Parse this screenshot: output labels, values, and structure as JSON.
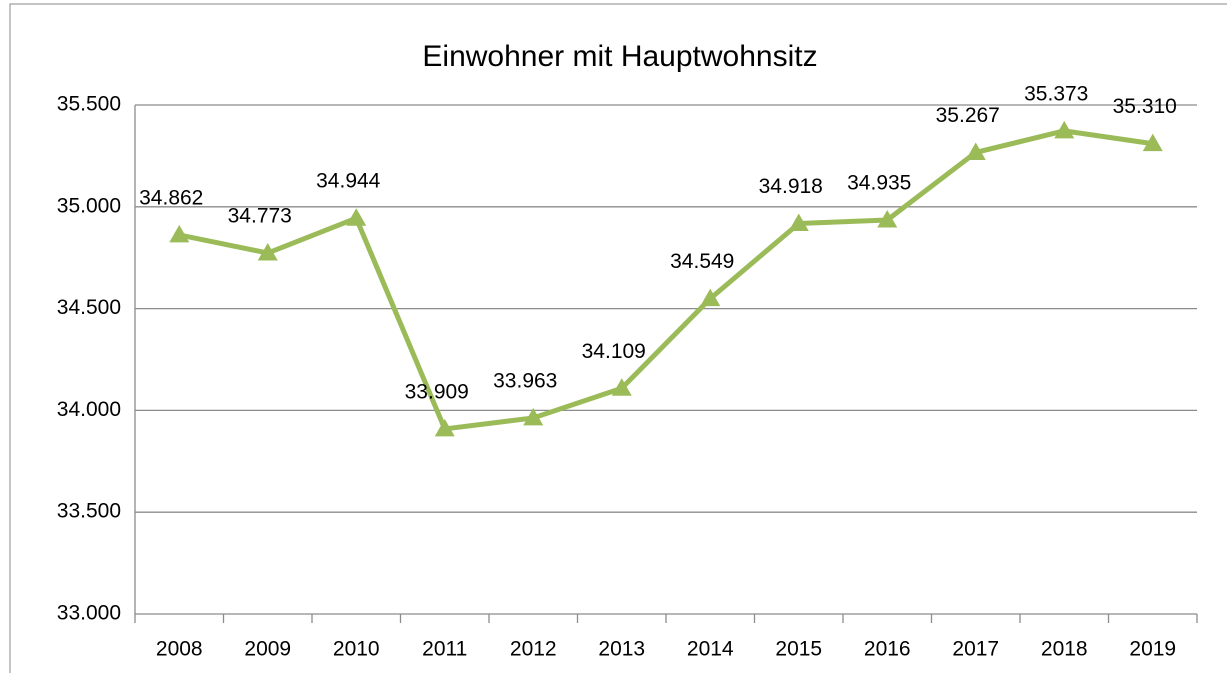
{
  "chart_data": {
    "type": "line",
    "title": "Einwohner mit Hauptwohnsitz",
    "categories": [
      "2008",
      "2009",
      "2010",
      "2011",
      "2012",
      "2013",
      "2014",
      "2015",
      "2016",
      "2017",
      "2018",
      "2019"
    ],
    "series": [
      {
        "name": "Einwohner mit Hauptwohnsitz",
        "color": "#9bbb59",
        "values": [
          34862,
          34773,
          34944,
          33909,
          33963,
          34109,
          34549,
          34918,
          34935,
          35267,
          35373,
          35310
        ],
        "value_labels": [
          "34.862",
          "34.773",
          "34.944",
          "33.909",
          "33.963",
          "34.109",
          "34.549",
          "34.918",
          "34.935",
          "35.267",
          "35.373",
          "35.310"
        ]
      }
    ],
    "ylim": [
      33000,
      35500
    ],
    "yticks": [
      {
        "value": 33000,
        "label": "33.000"
      },
      {
        "value": 33500,
        "label": "33.500"
      },
      {
        "value": 34000,
        "label": "34.000"
      },
      {
        "value": 34500,
        "label": "34.500"
      },
      {
        "value": 35000,
        "label": "35.000"
      },
      {
        "value": 35500,
        "label": "35.500"
      }
    ],
    "grid": true
  }
}
